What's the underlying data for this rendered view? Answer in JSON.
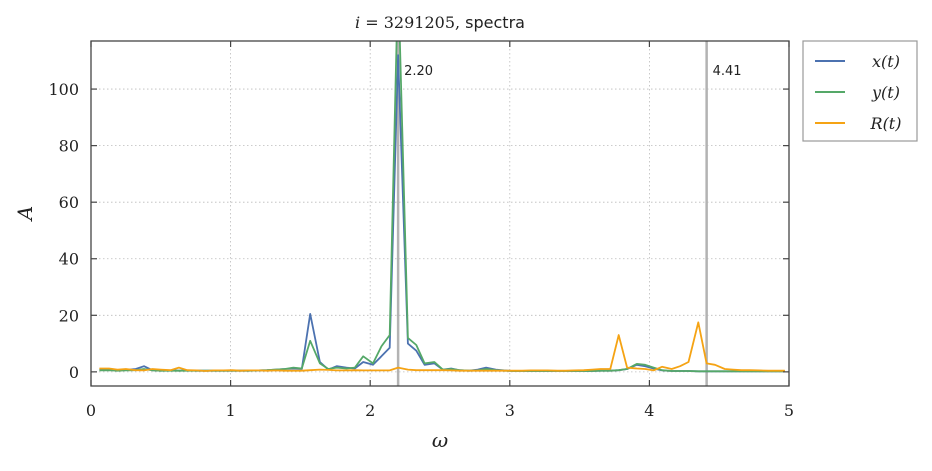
{
  "chart_data": {
    "type": "line",
    "title": "i = 3291205, spectra",
    "title_parts": {
      "prefix": "i",
      "equals": " = 3291205, ",
      "suffix": "spectra"
    },
    "xlabel": "ω",
    "ylabel": "A",
    "xlim": [
      0,
      5
    ],
    "ylim": [
      -5,
      117
    ],
    "xticks": [
      0,
      1,
      2,
      3,
      4,
      5
    ],
    "yticks": [
      0,
      20,
      40,
      60,
      80,
      100
    ],
    "grid": true,
    "legend_position": "outside-top-right",
    "vlines": [
      {
        "x": 2.2,
        "label": "2.20"
      },
      {
        "x": 4.41,
        "label": "4.41"
      }
    ],
    "series": [
      {
        "name": "x(t)",
        "color": "#4c72b0",
        "x": [
          0.06,
          0.13,
          0.19,
          0.25,
          0.32,
          0.38,
          0.44,
          0.5,
          0.57,
          0.63,
          0.69,
          0.76,
          0.82,
          0.88,
          0.95,
          1.01,
          1.07,
          1.13,
          1.2,
          1.26,
          1.32,
          1.39,
          1.45,
          1.51,
          1.57,
          1.64,
          1.7,
          1.76,
          1.83,
          1.89,
          1.95,
          2.02,
          2.08,
          2.14,
          2.2,
          2.27,
          2.33,
          2.39,
          2.46,
          2.52,
          2.58,
          2.64,
          2.71,
          2.77,
          2.83,
          2.9,
          2.96,
          3.02,
          3.09,
          3.15,
          3.21,
          3.27,
          3.34,
          3.4,
          3.46,
          3.53,
          3.59,
          3.65,
          3.72,
          3.78,
          3.84,
          3.91,
          3.97,
          4.03,
          4.09,
          4.16,
          4.22,
          4.28,
          4.35,
          4.41,
          4.47,
          4.54,
          4.6,
          4.66,
          4.72,
          4.79,
          4.85,
          4.91,
          4.97
        ],
        "y": [
          0.8,
          0.9,
          0.5,
          0.7,
          1.0,
          2.0,
          0.6,
          0.4,
          0.5,
          0.4,
          0.5,
          0.4,
          0.4,
          0.4,
          0.4,
          0.4,
          0.4,
          0.4,
          0.5,
          0.6,
          0.8,
          1.0,
          1.2,
          1.0,
          20.5,
          3.5,
          0.8,
          2.0,
          1.5,
          1.2,
          3.5,
          2.5,
          5.5,
          8.5,
          112,
          10.0,
          7.5,
          2.5,
          3.0,
          0.8,
          1.2,
          0.6,
          0.4,
          0.8,
          1.5,
          0.8,
          0.5,
          0.3,
          0.3,
          0.3,
          0.3,
          0.3,
          0.3,
          0.3,
          0.3,
          0.3,
          0.3,
          0.4,
          0.4,
          0.6,
          1.0,
          2.5,
          2.0,
          1.2,
          0.5,
          0.3,
          0.3,
          0.3,
          0.2,
          0.2,
          0.2,
          0.2,
          0.2,
          0.2,
          0.2,
          0.2,
          0.2,
          0.2,
          0.2
        ]
      },
      {
        "name": "y(t)",
        "color": "#55a868",
        "x": [
          0.06,
          0.13,
          0.19,
          0.25,
          0.32,
          0.38,
          0.44,
          0.5,
          0.57,
          0.63,
          0.69,
          0.76,
          0.82,
          0.88,
          0.95,
          1.01,
          1.07,
          1.13,
          1.2,
          1.26,
          1.32,
          1.39,
          1.45,
          1.51,
          1.57,
          1.64,
          1.7,
          1.76,
          1.83,
          1.89,
          1.95,
          2.02,
          2.08,
          2.14,
          2.2,
          2.27,
          2.33,
          2.39,
          2.46,
          2.52,
          2.58,
          2.64,
          2.71,
          2.77,
          2.83,
          2.9,
          2.96,
          3.02,
          3.09,
          3.15,
          3.21,
          3.27,
          3.34,
          3.4,
          3.46,
          3.53,
          3.59,
          3.65,
          3.72,
          3.78,
          3.84,
          3.91,
          3.97,
          4.03,
          4.09,
          4.16,
          4.22,
          4.28,
          4.35,
          4.41,
          4.47,
          4.54,
          4.6,
          4.66,
          4.72,
          4.79,
          4.85,
          4.91,
          4.97
        ],
        "y": [
          0.5,
          0.6,
          0.4,
          0.5,
          0.6,
          1.0,
          0.5,
          0.4,
          0.4,
          0.4,
          0.4,
          0.4,
          0.4,
          0.4,
          0.4,
          0.4,
          0.4,
          0.4,
          0.5,
          0.6,
          0.8,
          1.0,
          1.5,
          1.2,
          11.0,
          3.0,
          1.0,
          1.5,
          1.2,
          1.5,
          5.5,
          3.0,
          9.0,
          13.0,
          140,
          12.0,
          9.5,
          3.0,
          3.5,
          0.8,
          1.0,
          0.6,
          0.4,
          0.5,
          1.0,
          0.6,
          0.4,
          0.3,
          0.3,
          0.3,
          0.3,
          0.3,
          0.3,
          0.3,
          0.3,
          0.3,
          0.3,
          0.4,
          0.4,
          0.6,
          1.0,
          2.8,
          2.5,
          1.5,
          0.6,
          0.3,
          0.3,
          0.3,
          0.2,
          0.2,
          0.2,
          0.2,
          0.2,
          0.2,
          0.2,
          0.2,
          0.2,
          0.2,
          0.2
        ]
      },
      {
        "name": "R(t)",
        "color": "#f5a314",
        "x": [
          0.06,
          0.13,
          0.19,
          0.25,
          0.32,
          0.38,
          0.44,
          0.5,
          0.57,
          0.63,
          0.69,
          0.76,
          0.82,
          0.88,
          0.95,
          1.01,
          1.07,
          1.13,
          1.2,
          1.26,
          1.32,
          1.39,
          1.45,
          1.51,
          1.57,
          1.64,
          1.7,
          1.76,
          1.83,
          1.89,
          1.95,
          2.02,
          2.08,
          2.14,
          2.2,
          2.27,
          2.33,
          2.39,
          2.46,
          2.52,
          2.58,
          2.64,
          2.71,
          2.77,
          2.83,
          2.9,
          2.96,
          3.02,
          3.09,
          3.15,
          3.21,
          3.27,
          3.34,
          3.4,
          3.46,
          3.53,
          3.59,
          3.65,
          3.72,
          3.78,
          3.84,
          3.91,
          3.97,
          4.03,
          4.09,
          4.16,
          4.22,
          4.28,
          4.35,
          4.41,
          4.47,
          4.54,
          4.6,
          4.66,
          4.72,
          4.79,
          4.85,
          4.91,
          4.97
        ],
        "y": [
          1.2,
          1.2,
          0.8,
          1.0,
          0.6,
          0.5,
          1.0,
          0.8,
          0.6,
          1.5,
          0.6,
          0.5,
          0.3,
          0.5,
          0.5,
          0.6,
          0.4,
          0.5,
          0.5,
          0.4,
          0.5,
          0.4,
          0.4,
          0.4,
          0.6,
          0.8,
          0.7,
          0.5,
          0.5,
          0.6,
          0.5,
          0.5,
          0.5,
          0.5,
          1.5,
          0.8,
          0.6,
          0.6,
          0.6,
          0.6,
          0.5,
          0.4,
          0.4,
          0.4,
          0.4,
          0.4,
          0.4,
          0.4,
          0.4,
          0.5,
          0.5,
          0.5,
          0.4,
          0.4,
          0.5,
          0.6,
          0.8,
          1.0,
          1.0,
          13.0,
          1.5,
          1.2,
          1.0,
          0.5,
          1.8,
          1.0,
          2.0,
          3.5,
          17.5,
          3.0,
          2.5,
          1.0,
          0.8,
          0.6,
          0.6,
          0.5,
          0.4,
          0.4,
          0.4
        ]
      }
    ],
    "colors": {
      "axes": "#444444",
      "grid": "#bbbbbb",
      "vline": "#b3b3b3",
      "legend_border": "#999999"
    }
  }
}
